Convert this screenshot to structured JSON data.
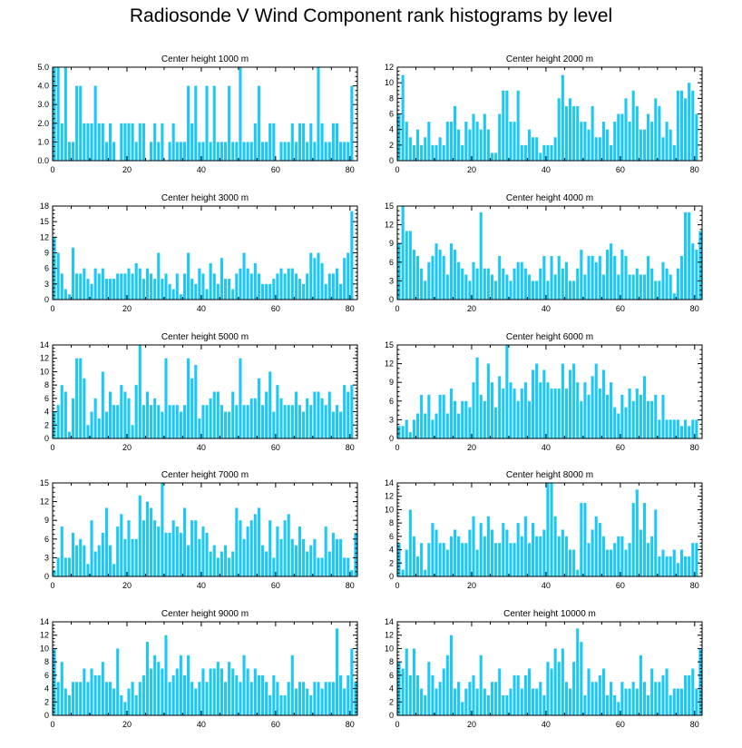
{
  "title": "Radiosonde V Wind Component rank histograms by level",
  "bar_color": "#1ec8f5",
  "chart_data": [
    {
      "type": "bar",
      "title": "Center height 1000 m",
      "ylim": [
        0,
        5
      ],
      "yticks": [
        0,
        1,
        2,
        3,
        4,
        5
      ],
      "ytick_labels": [
        "0.0",
        "1.0",
        "2.0",
        "3.0",
        "4.0",
        "5.0"
      ],
      "xlim": [
        0,
        82
      ],
      "xticks": [
        0,
        20,
        40,
        60,
        80
      ],
      "values": [
        5,
        5,
        2,
        5,
        1,
        1,
        4,
        4,
        2,
        2,
        2,
        4,
        2,
        2,
        1,
        2,
        1,
        0,
        2,
        2,
        2,
        2,
        1,
        2,
        2,
        0,
        1,
        2,
        1,
        2,
        0,
        1,
        2,
        1,
        1,
        1,
        4,
        2,
        4,
        1,
        1,
        4,
        1,
        4,
        1,
        1,
        1,
        4,
        1,
        1,
        5,
        1,
        1,
        1,
        2,
        4,
        1,
        1,
        2,
        2,
        0,
        1,
        1,
        1,
        2,
        1,
        2,
        2,
        1,
        2,
        1,
        5,
        2,
        1,
        1,
        2,
        2,
        1,
        1,
        1,
        4
      ]
    },
    {
      "type": "bar",
      "title": "Center height 2000 m",
      "ylim": [
        0,
        12
      ],
      "yticks": [
        0,
        2,
        4,
        6,
        8,
        10,
        12
      ],
      "ytick_labels": [
        "0",
        "2",
        "4",
        "6",
        "8",
        "10",
        "12"
      ],
      "xlim": [
        0,
        82
      ],
      "xticks": [
        0,
        20,
        40,
        60,
        80
      ],
      "values": [
        6,
        11,
        5,
        3,
        2,
        4,
        2,
        3,
        5,
        2,
        2,
        3,
        2,
        5,
        5,
        7,
        4,
        2,
        5,
        4,
        6,
        5,
        4,
        6,
        4,
        1,
        1,
        6,
        9,
        9,
        5,
        5,
        9,
        2,
        2,
        4,
        3,
        3,
        1,
        2,
        2,
        2,
        3,
        8,
        11,
        7,
        8,
        7,
        7,
        5,
        5,
        4,
        7,
        3,
        3,
        5,
        4,
        2,
        5,
        6,
        6,
        8,
        5,
        9,
        7,
        4,
        4,
        6,
        5,
        8,
        7,
        3,
        5,
        4,
        2,
        9,
        9,
        8,
        10,
        9,
        6
      ]
    },
    {
      "type": "bar",
      "title": "Center height 3000 m",
      "ylim": [
        0,
        18
      ],
      "yticks": [
        0,
        3,
        6,
        9,
        12,
        15,
        18
      ],
      "ytick_labels": [
        "0",
        "3",
        "6",
        "9",
        "12",
        "15",
        "18"
      ],
      "xlim": [
        0,
        82
      ],
      "xticks": [
        0,
        20,
        40,
        60,
        80
      ],
      "values": [
        12,
        9,
        5,
        2,
        1,
        10,
        5,
        5,
        6,
        4,
        3,
        6,
        5,
        6,
        4,
        4,
        4,
        5,
        5,
        5,
        6,
        5,
        7,
        6,
        4,
        6,
        5,
        4,
        9,
        4,
        5,
        3,
        2,
        5,
        1,
        5,
        9,
        4,
        3,
        6,
        5,
        2,
        7,
        5,
        3,
        8,
        4,
        4,
        2,
        5,
        6,
        9,
        6,
        5,
        7,
        5,
        3,
        3,
        3,
        4,
        5,
        6,
        5,
        6,
        6,
        5,
        4,
        3,
        5,
        9,
        8,
        9,
        7,
        3,
        5,
        5,
        6,
        3,
        8,
        9,
        17
      ]
    },
    {
      "type": "bar",
      "title": "Center height 4000 m",
      "ylim": [
        0,
        15
      ],
      "yticks": [
        0,
        3,
        6,
        9,
        12,
        15
      ],
      "ytick_labels": [
        "0",
        "3",
        "6",
        "9",
        "12",
        "15"
      ],
      "xlim": [
        0,
        82
      ],
      "xticks": [
        0,
        20,
        40,
        60,
        80
      ],
      "values": [
        9,
        15,
        11,
        11,
        8,
        7,
        5,
        3,
        6,
        7,
        9,
        8,
        7,
        4,
        9,
        8,
        6,
        5,
        4,
        3,
        6,
        5,
        14,
        5,
        5,
        4,
        3,
        7,
        5,
        4,
        3,
        5,
        6,
        6,
        5,
        4,
        3,
        3,
        5,
        7,
        3,
        7,
        4,
        7,
        5,
        6,
        3,
        3,
        5,
        8,
        4,
        7,
        7,
        6,
        7,
        4,
        8,
        9,
        7,
        4,
        8,
        7,
        4,
        4,
        5,
        4,
        4,
        7,
        5,
        3,
        3,
        6,
        5,
        4,
        1,
        5,
        7,
        14,
        14,
        9,
        8,
        11
      ]
    },
    {
      "type": "bar",
      "title": "Center height 5000 m",
      "ylim": [
        0,
        14
      ],
      "yticks": [
        0,
        2,
        4,
        6,
        8,
        10,
        12,
        14
      ],
      "ytick_labels": [
        "0",
        "2",
        "4",
        "6",
        "8",
        "10",
        "12",
        "14"
      ],
      "xlim": [
        0,
        82
      ],
      "xticks": [
        0,
        20,
        40,
        60,
        80
      ],
      "values": [
        4,
        5,
        8,
        7,
        1,
        6,
        12,
        12,
        9,
        2,
        4,
        6,
        3,
        10,
        4,
        7,
        5,
        5,
        8,
        7,
        6,
        2,
        8,
        14,
        5,
        7,
        5,
        6,
        5,
        4,
        12,
        5,
        5,
        5,
        4,
        5,
        12,
        9,
        11,
        3,
        5,
        5,
        6,
        7,
        7,
        5,
        4,
        4,
        7,
        5,
        12,
        5,
        5,
        6,
        6,
        9,
        5,
        7,
        10,
        4,
        8,
        6,
        5,
        5,
        5,
        7,
        5,
        4,
        6,
        5,
        7,
        7,
        6,
        5,
        7,
        4,
        5,
        4,
        8,
        7,
        8
      ]
    },
    {
      "type": "bar",
      "title": "Center height 6000 m",
      "ylim": [
        0,
        15
      ],
      "yticks": [
        0,
        3,
        6,
        9,
        12,
        15
      ],
      "ytick_labels": [
        "0",
        "3",
        "6",
        "9",
        "12",
        "15"
      ],
      "xlim": [
        0,
        82
      ],
      "xticks": [
        0,
        20,
        40,
        60,
        80
      ],
      "values": [
        2,
        2,
        3,
        1,
        3,
        4,
        7,
        4,
        7,
        3,
        4,
        7,
        7,
        4,
        8,
        6,
        4,
        6,
        6,
        5,
        9,
        13,
        7,
        6,
        12,
        9,
        5,
        10,
        8,
        15,
        9,
        8,
        6,
        8,
        9,
        6,
        11,
        12,
        9,
        11,
        9,
        8,
        8,
        8,
        12,
        8,
        11,
        12,
        9,
        6,
        9,
        7,
        10,
        12,
        8,
        11,
        7,
        9,
        5,
        4,
        7,
        5,
        8,
        6,
        8,
        7,
        10,
        6,
        6,
        7,
        3,
        7,
        3,
        3,
        3,
        3,
        2,
        3,
        2,
        3,
        3
      ]
    },
    {
      "type": "bar",
      "title": "Center height 7000 m",
      "ylim": [
        0,
        15
      ],
      "yticks": [
        0,
        3,
        6,
        9,
        12,
        15
      ],
      "ytick_labels": [
        "0",
        "3",
        "6",
        "9",
        "12",
        "15"
      ],
      "xlim": [
        0,
        82
      ],
      "xticks": [
        0,
        20,
        40,
        60,
        80
      ],
      "values": [
        1,
        3,
        8,
        3,
        3,
        7,
        5,
        6,
        5,
        2,
        9,
        4,
        5,
        7,
        11,
        5,
        2,
        8,
        10,
        6,
        9,
        6,
        6,
        13,
        9,
        12,
        11,
        9,
        8,
        15,
        7,
        7,
        9,
        8,
        7,
        11,
        5,
        9,
        9,
        6,
        8,
        7,
        4,
        5,
        3,
        4,
        5,
        3,
        4,
        11,
        9,
        6,
        8,
        9,
        10,
        11,
        5,
        4,
        9,
        3,
        8,
        6,
        9,
        10,
        6,
        5,
        8,
        6,
        4,
        5,
        6,
        3,
        3,
        8,
        4,
        7,
        6,
        6,
        3,
        3,
        1,
        7
      ]
    },
    {
      "type": "bar",
      "title": "Center height 8000 m",
      "ylim": [
        0,
        14
      ],
      "yticks": [
        0,
        2,
        4,
        6,
        8,
        10,
        12,
        14
      ],
      "ytick_labels": [
        "0",
        "2",
        "4",
        "6",
        "8",
        "10",
        "12",
        "14"
      ],
      "xlim": [
        0,
        82
      ],
      "xticks": [
        0,
        20,
        40,
        60,
        80
      ],
      "values": [
        5,
        1,
        4,
        10,
        6,
        3,
        5,
        1,
        5,
        8,
        7,
        5,
        5,
        4,
        6,
        7,
        6,
        5,
        5,
        7,
        9,
        4,
        8,
        6,
        9,
        7,
        5,
        5,
        8,
        7,
        5,
        5,
        8,
        6,
        9,
        5,
        8,
        6,
        6,
        7,
        14,
        14,
        9,
        6,
        7,
        6,
        4,
        4,
        1,
        11,
        11,
        5,
        7,
        9,
        8,
        6,
        4,
        4,
        5,
        6,
        6,
        4,
        5,
        11,
        13,
        7,
        11,
        5,
        6,
        10,
        3,
        4,
        3,
        3,
        4,
        2,
        4,
        3,
        3,
        5,
        5
      ]
    },
    {
      "type": "bar",
      "title": "Center height 9000 m",
      "ylim": [
        0,
        14
      ],
      "yticks": [
        0,
        2,
        4,
        6,
        8,
        10,
        12,
        14
      ],
      "ytick_labels": [
        "0",
        "2",
        "4",
        "6",
        "8",
        "10",
        "12",
        "14"
      ],
      "xlim": [
        0,
        82
      ],
      "xticks": [
        0,
        20,
        40,
        60,
        80
      ],
      "values": [
        10,
        5,
        8,
        4,
        3,
        5,
        5,
        5,
        7,
        5,
        7,
        6,
        6,
        8,
        5,
        5,
        4,
        10,
        3,
        2,
        4,
        5,
        3,
        5,
        6,
        11,
        7,
        9,
        8,
        7,
        12,
        5,
        6,
        7,
        9,
        6,
        9,
        5,
        4,
        5,
        7,
        5,
        7,
        7,
        8,
        7,
        5,
        8,
        7,
        6,
        5,
        9,
        7,
        5,
        7,
        6,
        6,
        5,
        3,
        6,
        5,
        3,
        3,
        5,
        9,
        4,
        5,
        5,
        4,
        3,
        5,
        5,
        4,
        5,
        5,
        5,
        13,
        6,
        4,
        6,
        10,
        5
      ]
    },
    {
      "type": "bar",
      "title": "Center height 10000 m",
      "ylim": [
        0,
        14
      ],
      "yticks": [
        0,
        2,
        4,
        6,
        8,
        10,
        12,
        14
      ],
      "ytick_labels": [
        "0",
        "2",
        "4",
        "6",
        "8",
        "10",
        "12",
        "14"
      ],
      "xlim": [
        0,
        82
      ],
      "xticks": [
        0,
        20,
        40,
        60,
        80
      ],
      "values": [
        8,
        7,
        10,
        6,
        10,
        6,
        4,
        3,
        8,
        6,
        4,
        5,
        7,
        9,
        12,
        4,
        5,
        2,
        4,
        5,
        6,
        4,
        9,
        4,
        3,
        5,
        5,
        7,
        3,
        3,
        4,
        6,
        6,
        4,
        6,
        7,
        4,
        4,
        5,
        3,
        8,
        7,
        10,
        8,
        10,
        5,
        4,
        8,
        13,
        11,
        3,
        7,
        5,
        5,
        6,
        7,
        3,
        5,
        3,
        2,
        5,
        4,
        4,
        5,
        4,
        9,
        5,
        3,
        7,
        5,
        5,
        6,
        7,
        3,
        4,
        4,
        4,
        6,
        6,
        7,
        4,
        10
      ]
    }
  ]
}
